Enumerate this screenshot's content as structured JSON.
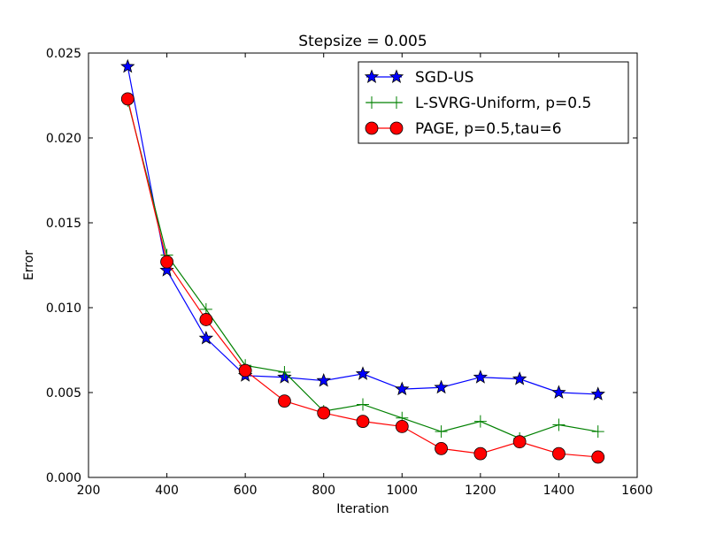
{
  "chart_data": {
    "type": "line",
    "title": "Stepsize = 0.005",
    "xlabel": "Iteration",
    "ylabel": "Error",
    "xlim": [
      200,
      1600
    ],
    "ylim": [
      0,
      0.025
    ],
    "x_ticks": [
      "200",
      "400",
      "600",
      "800",
      "1000",
      "1200",
      "1400",
      "1600"
    ],
    "y_ticks": [
      "0.000",
      "0.005",
      "0.010",
      "0.015",
      "0.020",
      "0.025"
    ],
    "x_tick_values": [
      200,
      400,
      600,
      800,
      1000,
      1200,
      1400,
      1600
    ],
    "y_tick_values": [
      0,
      0.005,
      0.01,
      0.015,
      0.02,
      0.025
    ],
    "grid": false,
    "legend_position": "top-right",
    "x": [
      300,
      400,
      500,
      600,
      700,
      800,
      900,
      1000,
      1100,
      1200,
      1300,
      1400,
      1500
    ],
    "series": [
      {
        "name": "SGD-US",
        "color": "#0000ff",
        "marker": "star",
        "values": [
          0.0242,
          0.0122,
          0.0082,
          0.006,
          0.0059,
          0.0057,
          0.0061,
          0.0052,
          0.0053,
          0.0059,
          0.0058,
          0.005,
          0.0049
        ]
      },
      {
        "name": "L-SVRG-Uniform, p=0.5",
        "color": "#008000",
        "marker": "plus",
        "values": [
          0.0222,
          0.0131,
          0.0099,
          0.0066,
          0.0062,
          0.0039,
          0.0043,
          0.0035,
          0.0027,
          0.0033,
          0.0023,
          0.0031,
          0.0027
        ]
      },
      {
        "name": "PAGE, p=0.5,tau=6",
        "color": "#ff0000",
        "marker": "circle",
        "values": [
          0.0223,
          0.0127,
          0.0093,
          0.0063,
          0.0045,
          0.0038,
          0.0033,
          0.003,
          0.0017,
          0.0014,
          0.0021,
          0.0014,
          0.0012
        ]
      }
    ]
  }
}
